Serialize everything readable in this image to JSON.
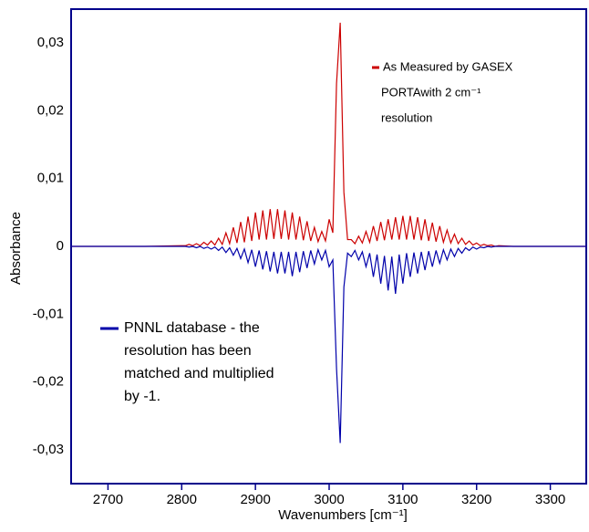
{
  "chart_data": {
    "type": "line",
    "xlabel": "Wavenumbers [cm⁻¹]",
    "ylabel": "Absorbance",
    "annotations": [
      "PORTAwith 2 cm⁻¹",
      "resolution",
      "resolution has been",
      "matched and multiplied",
      "by -1."
    ],
    "xlim": [
      2650,
      3350
    ],
    "xticks": [
      2700,
      2800,
      2900,
      3000,
      3100,
      3200,
      3300
    ],
    "ylim": [
      -0.035,
      0.035
    ],
    "yticks": [
      {
        "value": -0.03,
        "label": "-0,03"
      },
      {
        "value": -0.02,
        "label": "-0,02"
      },
      {
        "value": -0.01,
        "label": "-0,01"
      },
      0,
      {
        "value": 0.01,
        "label": "0,01"
      },
      {
        "value": 0.02,
        "label": "0,02"
      },
      {
        "value": 0.03,
        "label": "0,03"
      }
    ],
    "frame_color": "#00008b",
    "x": [
      2650,
      2700,
      2750,
      2800,
      2805,
      2810,
      2815,
      2820,
      2825,
      2830,
      2835,
      2840,
      2845,
      2850,
      2855,
      2860,
      2865,
      2870,
      2875,
      2880,
      2885,
      2890,
      2895,
      2900,
      2905,
      2910,
      2915,
      2920,
      2925,
      2930,
      2935,
      2940,
      2945,
      2950,
      2955,
      2960,
      2965,
      2970,
      2975,
      2980,
      2985,
      2990,
      2995,
      3000,
      3005,
      3010,
      3015,
      3020,
      3025,
      3030,
      3035,
      3040,
      3045,
      3050,
      3055,
      3060,
      3065,
      3070,
      3075,
      3080,
      3085,
      3090,
      3095,
      3100,
      3105,
      3110,
      3115,
      3120,
      3125,
      3130,
      3135,
      3140,
      3145,
      3150,
      3155,
      3160,
      3165,
      3170,
      3175,
      3180,
      3185,
      3190,
      3195,
      3200,
      3205,
      3210,
      3215,
      3220,
      3225,
      3230,
      3250,
      3300,
      3350
    ],
    "series": [
      {
        "name": "As Measured by GASEX",
        "color": "#cc0000",
        "values": [
          0,
          0,
          0,
          0.0001,
          0.0001,
          0.0003,
          0.0001,
          0.0004,
          0.0001,
          0.0006,
          0.0002,
          0.0008,
          0.0002,
          0.0012,
          0.0003,
          0.002,
          0.0004,
          0.0028,
          0.0005,
          0.0036,
          0.0006,
          0.0044,
          0.0008,
          0.005,
          0.001,
          0.0053,
          0.001,
          0.0055,
          0.0011,
          0.0055,
          0.0011,
          0.0053,
          0.001,
          0.005,
          0.001,
          0.0044,
          0.0009,
          0.0037,
          0.0008,
          0.0028,
          0.0007,
          0.0022,
          0.0008,
          0.004,
          0.002,
          0.024,
          0.033,
          0.008,
          0.001,
          0.001,
          0.0004,
          0.0015,
          0.0005,
          0.0022,
          0.0006,
          0.003,
          0.0008,
          0.0036,
          0.0009,
          0.004,
          0.001,
          0.0043,
          0.001,
          0.0045,
          0.001,
          0.0045,
          0.001,
          0.0043,
          0.0009,
          0.004,
          0.0008,
          0.0035,
          0.0007,
          0.003,
          0.0006,
          0.0024,
          0.0005,
          0.0018,
          0.0004,
          0.0012,
          0.0003,
          0.0008,
          0.0002,
          0.0005,
          0.0001,
          0.0003,
          0.0001,
          0.0002,
          0,
          0.0001,
          0,
          0,
          0
        ]
      },
      {
        "name": "PNNL database - the",
        "color": "#0000aa",
        "values": [
          0,
          0,
          0,
          0,
          0,
          -0.0001,
          0,
          -0.0002,
          0,
          -0.0003,
          -0.0001,
          -0.0004,
          -0.0001,
          -0.0006,
          -0.0001,
          -0.0009,
          -0.0002,
          -0.0013,
          -0.0003,
          -0.0018,
          -0.0004,
          -0.0024,
          -0.0005,
          -0.003,
          -0.0006,
          -0.0034,
          -0.0007,
          -0.0037,
          -0.0008,
          -0.004,
          -0.0008,
          -0.004,
          -0.0008,
          -0.0044,
          -0.0008,
          -0.0038,
          -0.0007,
          -0.0032,
          -0.0006,
          -0.0026,
          -0.0005,
          -0.002,
          -0.0006,
          -0.003,
          -0.002,
          -0.018,
          -0.029,
          -0.006,
          -0.001,
          -0.0015,
          -0.0006,
          -0.002,
          -0.0008,
          -0.003,
          -0.001,
          -0.0045,
          -0.0012,
          -0.0055,
          -0.0014,
          -0.0065,
          -0.0015,
          -0.007,
          -0.0012,
          -0.0055,
          -0.001,
          -0.0045,
          -0.0009,
          -0.004,
          -0.0008,
          -0.0035,
          -0.0007,
          -0.003,
          -0.0006,
          -0.0025,
          -0.0005,
          -0.002,
          -0.0004,
          -0.0015,
          -0.0003,
          -0.001,
          -0.0002,
          -0.0006,
          -0.0001,
          -0.0004,
          -0.0001,
          -0.0002,
          0,
          -0.0001,
          0,
          0,
          0,
          0,
          0
        ]
      }
    ]
  }
}
